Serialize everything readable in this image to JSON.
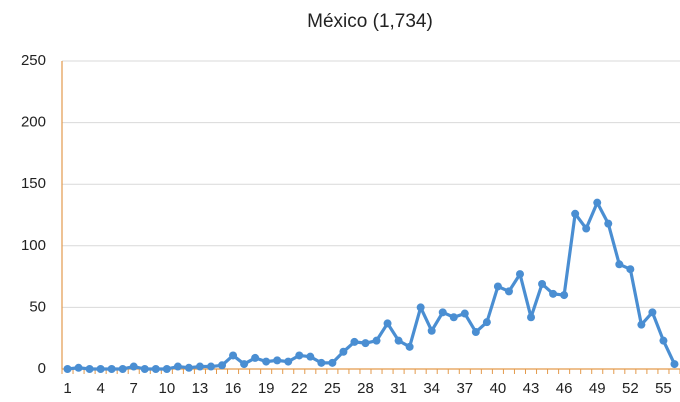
{
  "chart_data": {
    "type": "line",
    "title": "México (1,734)",
    "categories": [
      "1",
      null,
      null,
      "4",
      null,
      null,
      "7",
      null,
      null,
      "10",
      null,
      null,
      "13",
      null,
      null,
      "16",
      null,
      null,
      "19",
      null,
      null,
      "22",
      null,
      null,
      "25",
      null,
      null,
      "28",
      null,
      null,
      "31",
      null,
      null,
      "34",
      null,
      null,
      "37",
      null,
      null,
      "40",
      null,
      null,
      "43",
      null,
      null,
      "46",
      null,
      null,
      "49",
      null,
      null,
      "52",
      null,
      null,
      "55",
      null
    ],
    "series": [
      {
        "name": "México",
        "color": "#4a8ed2",
        "values": [
          0,
          1,
          0,
          0,
          0,
          0,
          2,
          0,
          0,
          0,
          2,
          1,
          2,
          2,
          3,
          11,
          4,
          9,
          6,
          7,
          6,
          11,
          10,
          5,
          5,
          14,
          22,
          21,
          23,
          37,
          23,
          18,
          50,
          31,
          46,
          42,
          45,
          30,
          38,
          67,
          63,
          77,
          42,
          69,
          61,
          60,
          126,
          114,
          135,
          118,
          85,
          81,
          36,
          46,
          23,
          4
        ]
      }
    ],
    "ylim": [
      0,
      250
    ],
    "yticks": [
      0,
      50,
      100,
      150,
      200,
      250
    ],
    "grid": true
  }
}
